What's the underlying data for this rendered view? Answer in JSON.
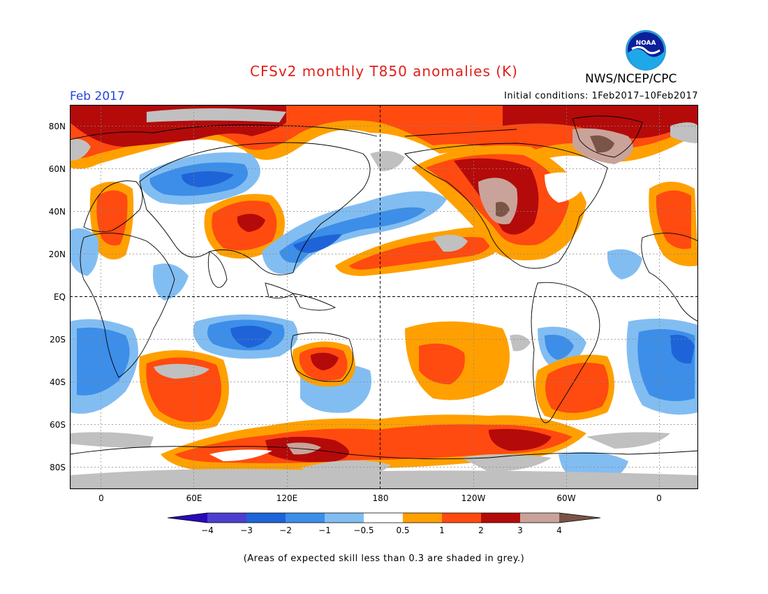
{
  "header": {
    "title": "CFSv2 monthly T850 anomalies (K)",
    "agency": "NWS/NCEP/CPC",
    "month": "Feb 2017",
    "initial_conditions": "Initial conditions: 1Feb2017–10Feb2017",
    "logo_text": "NOAA"
  },
  "map": {
    "lat_labels": [
      "80N",
      "60N",
      "40N",
      "20N",
      "EQ",
      "20S",
      "40S",
      "60S",
      "80S"
    ],
    "lon_labels": [
      "0",
      "60E",
      "120E",
      "180",
      "120W",
      "60W",
      "0"
    ]
  },
  "colorbar": {
    "labels": [
      "−4",
      "−3",
      "−2",
      "−1",
      "−0.5",
      "0.5",
      "1",
      "2",
      "3",
      "4"
    ],
    "colors": [
      "#2a0ab8",
      "#4c3fcf",
      "#1e64d8",
      "#3c8ee8",
      "#82bdf2",
      "#ffffff",
      "#ffa000",
      "#ff4a10",
      "#b40a0a",
      "#c9a39a",
      "#7a5446"
    ]
  },
  "footnote": "(Areas of expected skill less than 0.3 are shaded in grey.)",
  "colors": {
    "title": "#e0201a",
    "month": "#2244dd",
    "skill_grey": "#c0c0c0"
  }
}
